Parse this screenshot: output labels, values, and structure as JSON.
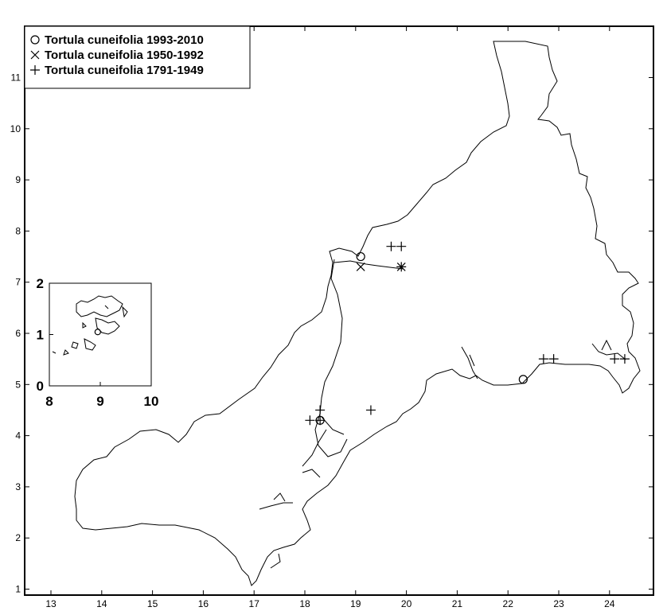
{
  "map": {
    "x_axis": {
      "min": 13,
      "max": 25,
      "tick_labels": [
        "13",
        "14",
        "15",
        "16",
        "17",
        "18",
        "19",
        "20",
        "21",
        "22",
        "23",
        "24"
      ]
    },
    "y_axis": {
      "min": 1,
      "max": 12,
      "tick_labels": [
        "1",
        "2",
        "3",
        "4",
        "5",
        "6",
        "7",
        "8",
        "9",
        "10",
        "11"
      ]
    },
    "inset": {
      "x_tick_labels": [
        "8",
        "9",
        "10"
      ],
      "y_tick_labels": [
        "0",
        "1",
        "2"
      ]
    },
    "legend": [
      {
        "symbol": "circle",
        "label": "Tortula cuneifolia 1993-2010"
      },
      {
        "symbol": "x",
        "label": "Tortula cuneifolia 1950-1992"
      },
      {
        "symbol": "plus",
        "label": "Tortula cuneifolia 1791-1949"
      }
    ],
    "records": {
      "circle": [
        [
          19.1,
          7.5
        ],
        [
          18.3,
          4.3
        ],
        [
          22.3,
          5.1
        ]
      ],
      "x": [
        [
          19.1,
          7.3
        ],
        [
          19.9,
          7.3
        ]
      ],
      "plus": [
        [
          19.7,
          7.7
        ],
        [
          19.9,
          7.7
        ],
        [
          19.9,
          7.3
        ],
        [
          18.3,
          4.5
        ],
        [
          18.1,
          4.3
        ],
        [
          18.3,
          4.3
        ],
        [
          19.3,
          4.5
        ],
        [
          22.7,
          5.5
        ],
        [
          22.9,
          5.5
        ],
        [
          24.1,
          5.5
        ],
        [
          24.3,
          5.5
        ]
      ],
      "inset_circle": [
        [
          8.95,
          1.05
        ]
      ]
    }
  }
}
